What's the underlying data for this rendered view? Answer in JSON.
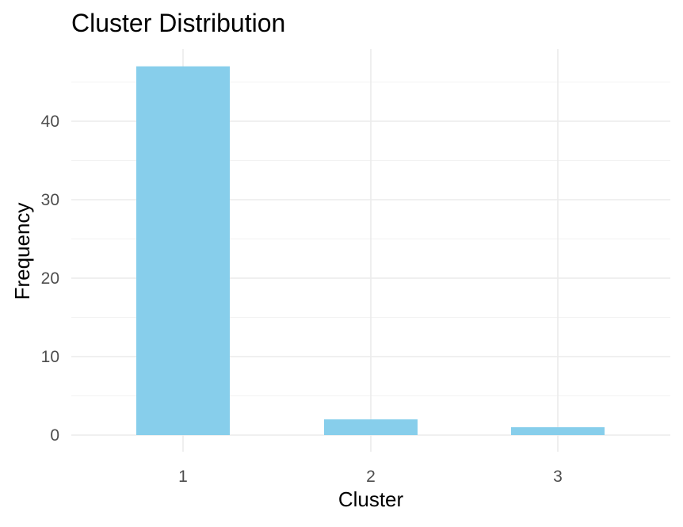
{
  "chart_data": {
    "type": "bar",
    "title": "Cluster Distribution",
    "xlabel": "Cluster",
    "ylabel": "Frequency",
    "categories": [
      "1",
      "2",
      "3"
    ],
    "values": [
      47,
      2,
      1
    ],
    "ylim": [
      0,
      49
    ],
    "yticks": [
      0,
      10,
      20,
      30,
      40
    ],
    "bar_color": "#87CEEB",
    "grid": true,
    "legend": "none"
  }
}
